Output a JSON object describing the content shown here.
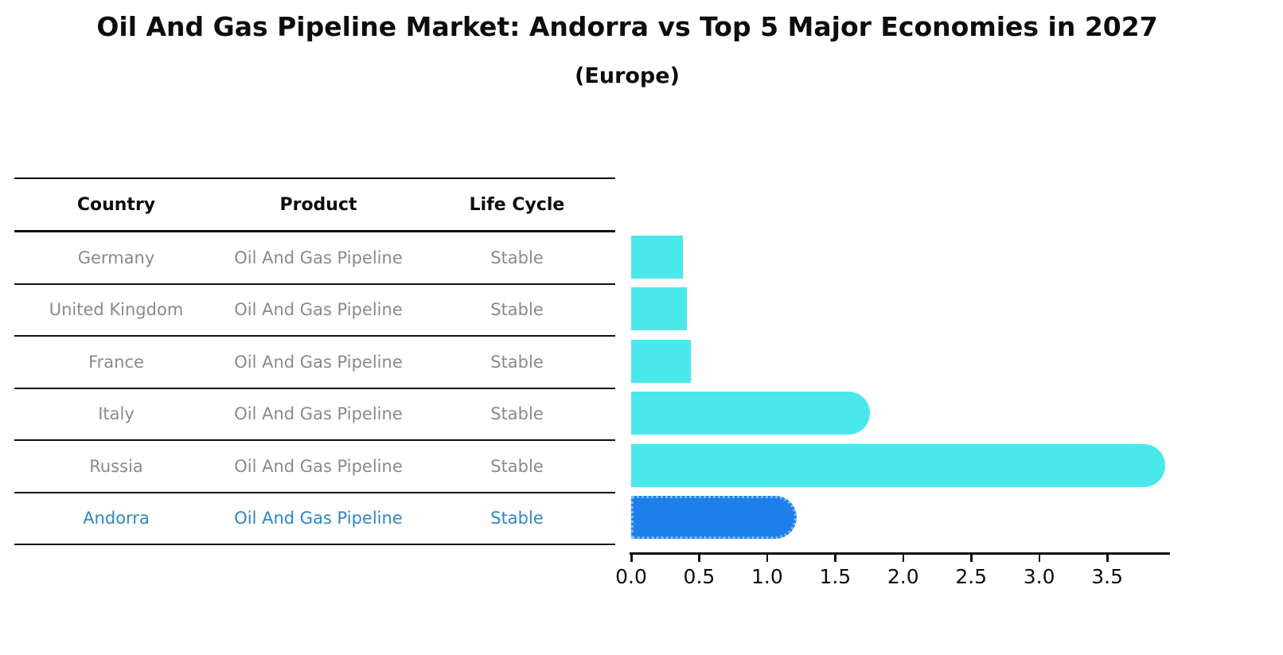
{
  "title": "Oil And Gas Pipeline Market: Andorra vs Top 5 Major Economies in 2027",
  "subtitle": "(Europe)",
  "table": {
    "columns": [
      "Country",
      "Product",
      "Life Cycle"
    ],
    "rows": [
      {
        "country": "Germany",
        "product": "Oil And Gas Pipeline",
        "life_cycle": "Stable",
        "highlight": false
      },
      {
        "country": "United Kingdom",
        "product": "Oil And Gas Pipeline",
        "life_cycle": "Stable",
        "highlight": false
      },
      {
        "country": "France",
        "product": "Oil And Gas Pipeline",
        "life_cycle": "Stable",
        "highlight": false
      },
      {
        "country": "Italy",
        "product": "Oil And Gas Pipeline",
        "life_cycle": "Stable",
        "highlight": false
      },
      {
        "country": "Russia",
        "product": "Oil And Gas Pipeline",
        "life_cycle": "Stable",
        "highlight": false
      },
      {
        "country": "Andorra",
        "product": "Oil And Gas Pipeline",
        "life_cycle": "Stable",
        "highlight": true
      }
    ]
  },
  "chart_data": {
    "type": "bar",
    "orientation": "horizontal",
    "title": "Oil And Gas Pipeline Market: Andorra vs Top 5 Major Economies in 2027",
    "subtitle": "(Europe)",
    "categories": [
      "Germany",
      "United Kingdom",
      "France",
      "Italy",
      "Russia",
      "Andorra"
    ],
    "values": [
      0.38,
      0.41,
      0.44,
      1.6,
      3.77,
      1.06
    ],
    "labels": [
      "0.38%",
      "0.41%",
      "0.44%",
      "1.60%",
      "3.77%",
      "1.06%"
    ],
    "x_ticks": [
      0.0,
      0.5,
      1.0,
      1.5,
      2.0,
      2.5,
      3.0,
      3.5
    ],
    "x_tick_labels": [
      "0.0",
      "0.5",
      "1.0",
      "1.5",
      "2.0",
      "2.5",
      "3.0",
      "3.5"
    ],
    "xlim": [
      0,
      3.95
    ],
    "grid": false,
    "legend": false,
    "highlight_index": 5
  },
  "colors": {
    "bar": "#4AE8EA",
    "highlight_bar": "#1E7FEB",
    "highlight_border": "#79BEF5",
    "highlight_text": "#2E86C8",
    "body_text": "#8a8a8a",
    "axis": "#111111"
  }
}
